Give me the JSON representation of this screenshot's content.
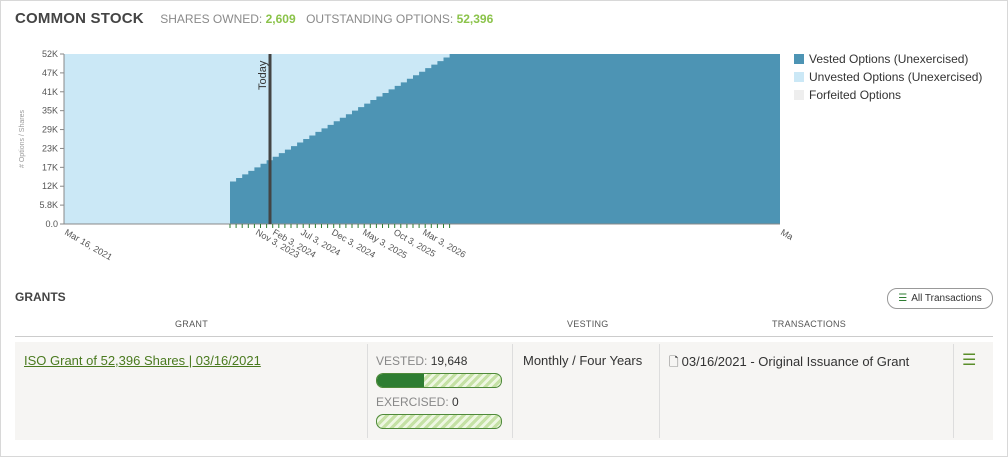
{
  "header": {
    "title": "COMMON STOCK",
    "shares_owned_label": "SHARES OWNED:",
    "shares_owned_value": "2,609",
    "outstanding_label": "OUTSTANDING OPTIONS:",
    "outstanding_value": "52,396"
  },
  "chart_data": {
    "type": "area",
    "ylabel": "# Options / Shares",
    "yticks": [
      "0.0",
      "5.8K",
      "12K",
      "17K",
      "23K",
      "29K",
      "35K",
      "41K",
      "47K",
      "52K"
    ],
    "ylim": [
      0,
      52396
    ],
    "xticks": [
      "Mar 16, 2021",
      "Nov 3, 2023",
      "Feb 3, 2024",
      "Jul 3, 2024",
      "Dec 3, 2024",
      "May 3, 2025",
      "Oct 3, 2025",
      "Mar 3, 2026",
      "Ma"
    ],
    "today_label": "Today",
    "cliff_label_date": "Nov 3, 2023",
    "cliff_value": 13099,
    "monthly_vest_steps": 36,
    "total": 52396,
    "vested_now": 19648,
    "series": [
      {
        "name": "Vested Options (Unexercised)",
        "color": "#4d94b4"
      },
      {
        "name": "Unvested Options (Unexercised)",
        "color": "#cbe8f6"
      },
      {
        "name": "Forfeited Options",
        "color": "#eeeeee"
      }
    ],
    "legend_position": "right"
  },
  "grants": {
    "title": "GRANTS",
    "all_transactions_label": "All Transactions",
    "columns": [
      "GRANT",
      "VESTING",
      "TRANSACTIONS"
    ],
    "rows": [
      {
        "grant_label": "ISO Grant of 52,396 Shares | 03/16/2021",
        "vested_label": "VESTED:",
        "vested_value": "19,648",
        "vested_fraction": 0.375,
        "exercised_label": "EXERCISED:",
        "exercised_value": "0",
        "exercised_fraction": 0,
        "vesting": "Monthly / Four Years",
        "transaction": "03/16/2021 - Original Issuance of Grant"
      }
    ]
  },
  "colors": {
    "accent": "#8bc34a",
    "link": "#4a7a1f",
    "bar_fill": "#2e7d32"
  }
}
